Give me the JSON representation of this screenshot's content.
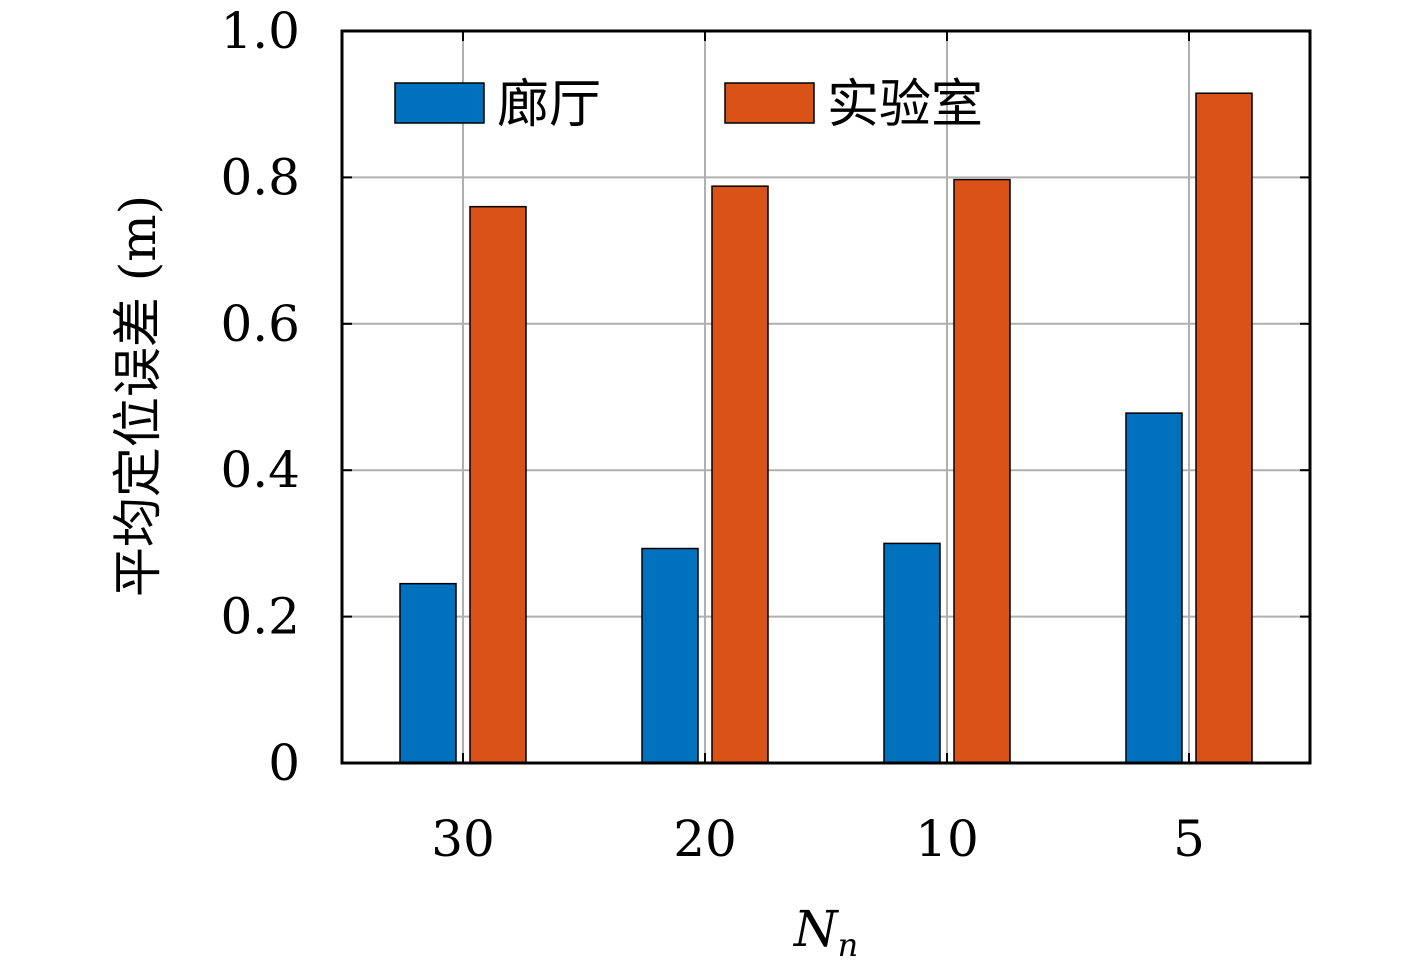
{
  "chart_data": {
    "type": "bar",
    "categories": [
      "30",
      "20",
      "10",
      "5"
    ],
    "series": [
      {
        "name": "廊厅",
        "values": [
          0.245,
          0.293,
          0.3,
          0.478
        ],
        "color": "#0072BD"
      },
      {
        "name": "实验室",
        "values": [
          0.76,
          0.788,
          0.797,
          0.915
        ],
        "color": "#D95319"
      }
    ],
    "title": "",
    "xlabel": "N",
    "xlabel_subscript": "n",
    "ylabel": "平均定位误差 (m)",
    "ylim": [
      0,
      1.0
    ],
    "yticks": [
      "0",
      "0.2",
      "0.4",
      "0.6",
      "0.8",
      "1.0"
    ],
    "grid": true,
    "legend_position": "top, horizontal"
  }
}
